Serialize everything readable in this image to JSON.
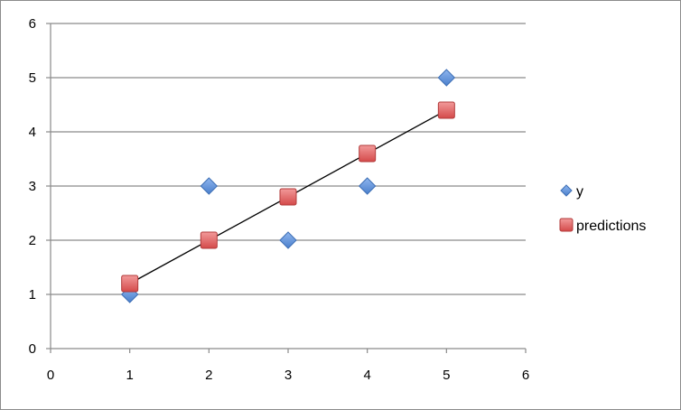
{
  "chart_data": {
    "type": "scatter",
    "xlim": [
      0,
      6
    ],
    "ylim": [
      0,
      6
    ],
    "x_ticks": [
      "0",
      "1",
      "2",
      "3",
      "4",
      "5",
      "6"
    ],
    "y_ticks": [
      "0",
      "1",
      "2",
      "3",
      "4",
      "5",
      "6"
    ],
    "grid": {
      "horizontal": true,
      "vertical": false
    },
    "legend_position": "right",
    "series": [
      {
        "name": "y",
        "marker": "diamond",
        "color": "#5b8fd6",
        "points": [
          {
            "x": 1,
            "y": 1
          },
          {
            "x": 2,
            "y": 3
          },
          {
            "x": 3,
            "y": 2
          },
          {
            "x": 4,
            "y": 3
          },
          {
            "x": 5,
            "y": 5
          }
        ]
      },
      {
        "name": "predictions",
        "marker": "square",
        "color": "#e05656",
        "points": [
          {
            "x": 1,
            "y": 1.2
          },
          {
            "x": 2,
            "y": 2.0
          },
          {
            "x": 3,
            "y": 2.8
          },
          {
            "x": 4,
            "y": 3.6
          },
          {
            "x": 5,
            "y": 4.4
          }
        ]
      }
    ],
    "trendline": {
      "x": [
        1,
        5
      ],
      "y": [
        1.2,
        4.4
      ],
      "color": "#000000"
    }
  }
}
